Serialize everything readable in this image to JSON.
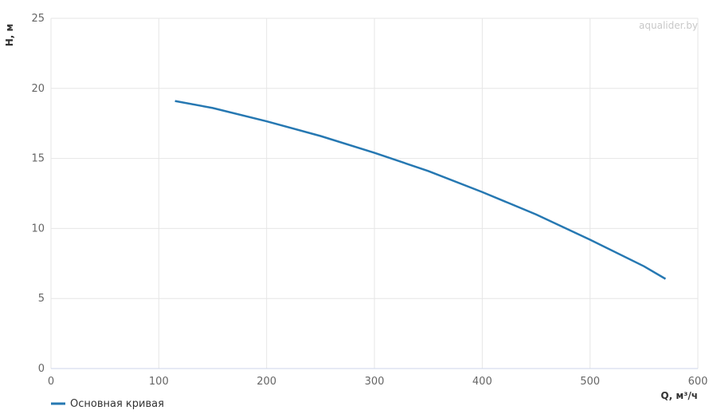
{
  "chart_data": {
    "type": "line",
    "x_label": "Q, м³/ч",
    "y_label": "H, м",
    "watermark": "aqualider.by",
    "x": [
      115,
      150,
      200,
      250,
      300,
      350,
      400,
      450,
      500,
      550,
      570
    ],
    "series": [
      {
        "name": "Основная кривая",
        "color": "#2678b2",
        "values": [
          19.1,
          18.6,
          17.65,
          16.6,
          15.4,
          14.1,
          12.6,
          11.0,
          9.2,
          7.3,
          6.4
        ]
      }
    ],
    "xlim": [
      0,
      600
    ],
    "xticks": [
      0,
      100,
      200,
      300,
      400,
      500,
      600
    ],
    "ylim": [
      0,
      25
    ],
    "yticks": [
      0,
      5,
      10,
      15,
      20,
      25
    ],
    "grid": true
  }
}
